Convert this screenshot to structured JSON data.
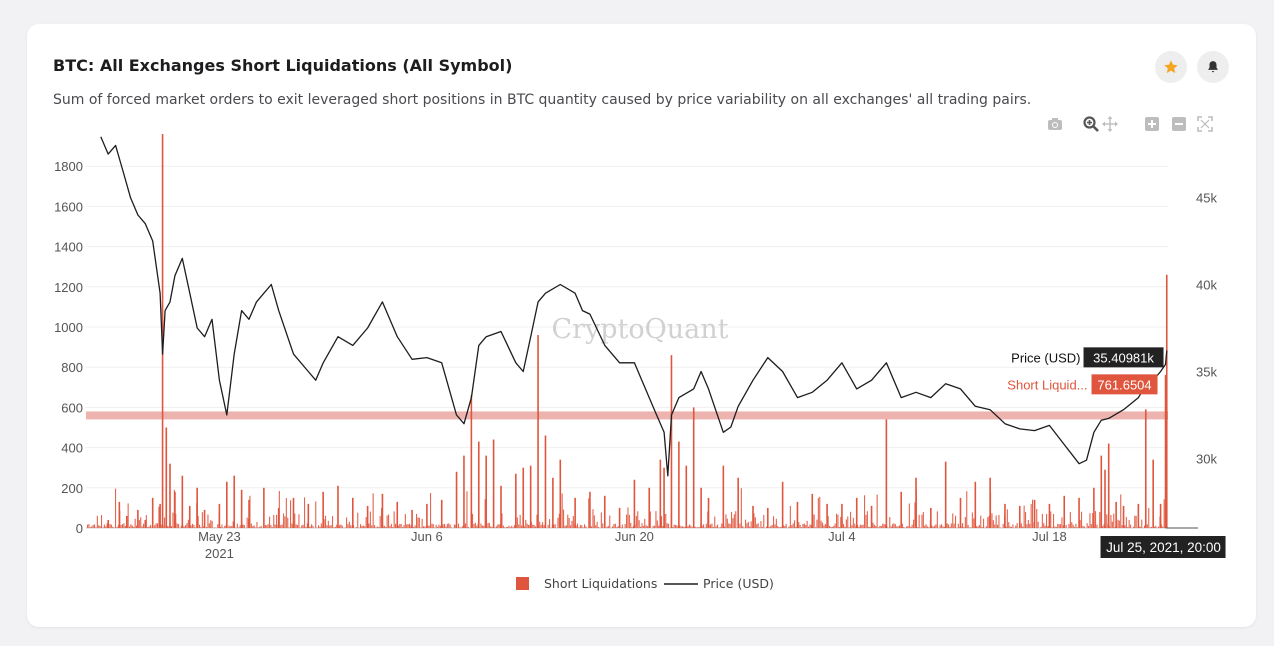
{
  "header": {
    "title": "BTC: All Exchanges Short Liquidations (All Symbol)",
    "subtitle": "Sum of forced market orders to exit leveraged short positions in BTC quantity caused by price variability on all exchanges' all trading pairs."
  },
  "toolbar": {
    "icons": [
      "camera-icon",
      "zoom-icon",
      "pan-icon",
      "zoom-in-icon",
      "zoom-out-icon",
      "autoscale-icon"
    ]
  },
  "watermark": "CryptoQuant",
  "tooltip": {
    "price_label": "Price (USD)",
    "price_value": "35.40981k",
    "liq_label": "Short Liquid...",
    "liq_value": "761.6504",
    "date": "Jul 25, 2021, 20:00"
  },
  "colors": {
    "liquidation": "#e0553d",
    "price": "#1d1d1f",
    "star": "#f5a623",
    "highlight_band": "#e79a93"
  },
  "chart_data": {
    "type": "bar",
    "x_range": [
      "2021-05-14",
      "2021-07-26"
    ],
    "x_ticks": [
      {
        "date": "2021-05-23",
        "label": "May 23",
        "sub": "2021"
      },
      {
        "date": "2021-06-06",
        "label": "Jun 6",
        "sub": ""
      },
      {
        "date": "2021-06-20",
        "label": "Jun 20",
        "sub": ""
      },
      {
        "date": "2021-07-04",
        "label": "Jul 4",
        "sub": ""
      },
      {
        "date": "2021-07-18",
        "label": "Jul 18",
        "sub": ""
      }
    ],
    "y_left": {
      "range": [
        0,
        1990
      ],
      "ticks": [
        0,
        200,
        400,
        600,
        800,
        1000,
        1200,
        1400,
        1600,
        1800
      ]
    },
    "y_right": {
      "range": [
        26000,
        49000
      ],
      "ticks": [
        30000,
        35000,
        40000,
        45000
      ],
      "tick_labels": [
        "30k",
        "35k",
        "40k",
        "45k"
      ]
    },
    "highlight_band_value": 560,
    "legend": {
      "placement": "bottom-center",
      "items": [
        "Short Liquidations",
        "Price (USD)"
      ]
    },
    "series": [
      {
        "name": "Short Liquidations",
        "kind": "bar",
        "axis": "left",
        "points": [
          [
            "2021-05-15 12:00",
            40
          ],
          [
            "2021-05-16 06:00",
            130
          ],
          [
            "2021-05-16 18:00",
            60
          ],
          [
            "2021-05-17 12:00",
            90
          ],
          [
            "2021-05-18 00:00",
            40
          ],
          [
            "2021-05-18 12:00",
            150
          ],
          [
            "2021-05-19 00:00",
            120
          ],
          [
            "2021-05-19 04:00",
            1960
          ],
          [
            "2021-05-19 10:00",
            500
          ],
          [
            "2021-05-19 16:00",
            320
          ],
          [
            "2021-05-20 00:00",
            180
          ],
          [
            "2021-05-20 12:00",
            260
          ],
          [
            "2021-05-21 00:00",
            110
          ],
          [
            "2021-05-21 12:00",
            200
          ],
          [
            "2021-05-22 00:00",
            90
          ],
          [
            "2021-05-23 00:00",
            120
          ],
          [
            "2021-05-23 12:00",
            230
          ],
          [
            "2021-05-24 00:00",
            260
          ],
          [
            "2021-05-24 12:00",
            190
          ],
          [
            "2021-05-25 00:00",
            140
          ],
          [
            "2021-05-26 00:00",
            200
          ],
          [
            "2021-05-27 00:00",
            100
          ],
          [
            "2021-05-28 00:00",
            150
          ],
          [
            "2021-05-29 00:00",
            120
          ],
          [
            "2021-05-30 00:00",
            180
          ],
          [
            "2021-05-31 00:00",
            210
          ],
          [
            "2021-06-01 00:00",
            150
          ],
          [
            "2021-06-02 00:00",
            110
          ],
          [
            "2021-06-03 00:00",
            170
          ],
          [
            "2021-06-04 00:00",
            130
          ],
          [
            "2021-06-05 00:00",
            90
          ],
          [
            "2021-06-06 00:00",
            120
          ],
          [
            "2021-06-07 00:00",
            140
          ],
          [
            "2021-06-08 00:00",
            280
          ],
          [
            "2021-06-08 12:00",
            360
          ],
          [
            "2021-06-09 00:00",
            660
          ],
          [
            "2021-06-09 12:00",
            430
          ],
          [
            "2021-06-10 00:00",
            360
          ],
          [
            "2021-06-10 12:00",
            440
          ],
          [
            "2021-06-11 00:00",
            210
          ],
          [
            "2021-06-12 00:00",
            270
          ],
          [
            "2021-06-12 12:00",
            300
          ],
          [
            "2021-06-13 00:00",
            310
          ],
          [
            "2021-06-13 12:00",
            960
          ],
          [
            "2021-06-14 00:00",
            460
          ],
          [
            "2021-06-14 12:00",
            250
          ],
          [
            "2021-06-15 00:00",
            340
          ],
          [
            "2021-06-16 00:00",
            150
          ],
          [
            "2021-06-17 00:00",
            180
          ],
          [
            "2021-06-18 00:00",
            160
          ],
          [
            "2021-06-19 00:00",
            100
          ],
          [
            "2021-06-20 00:00",
            240
          ],
          [
            "2021-06-21 00:00",
            200
          ],
          [
            "2021-06-21 18:00",
            340
          ],
          [
            "2021-06-22 00:00",
            300
          ],
          [
            "2021-06-22 12:00",
            860
          ],
          [
            "2021-06-23 00:00",
            430
          ],
          [
            "2021-06-23 12:00",
            310
          ],
          [
            "2021-06-24 00:00",
            600
          ],
          [
            "2021-06-24 12:00",
            200
          ],
          [
            "2021-06-25 00:00",
            150
          ],
          [
            "2021-06-26 00:00",
            310
          ],
          [
            "2021-06-27 00:00",
            250
          ],
          [
            "2021-06-28 00:00",
            110
          ],
          [
            "2021-06-29 00:00",
            100
          ],
          [
            "2021-06-30 00:00",
            230
          ],
          [
            "2021-07-01 00:00",
            130
          ],
          [
            "2021-07-02 00:00",
            170
          ],
          [
            "2021-07-03 00:00",
            120
          ],
          [
            "2021-07-04 00:00",
            120
          ],
          [
            "2021-07-05 00:00",
            150
          ],
          [
            "2021-07-06 00:00",
            110
          ],
          [
            "2021-07-07 00:00",
            540
          ],
          [
            "2021-07-08 00:00",
            180
          ],
          [
            "2021-07-09 00:00",
            250
          ],
          [
            "2021-07-10 00:00",
            100
          ],
          [
            "2021-07-11 00:00",
            330
          ],
          [
            "2021-07-12 00:00",
            150
          ],
          [
            "2021-07-13 00:00",
            230
          ],
          [
            "2021-07-14 00:00",
            250
          ],
          [
            "2021-07-15 00:00",
            120
          ],
          [
            "2021-07-16 00:00",
            110
          ],
          [
            "2021-07-17 00:00",
            140
          ],
          [
            "2021-07-18 00:00",
            120
          ],
          [
            "2021-07-19 00:00",
            160
          ],
          [
            "2021-07-20 00:00",
            150
          ],
          [
            "2021-07-21 00:00",
            200
          ],
          [
            "2021-07-21 12:00",
            360
          ],
          [
            "2021-07-21 18:00",
            290
          ],
          [
            "2021-07-22 00:00",
            420
          ],
          [
            "2021-07-22 12:00",
            130
          ],
          [
            "2021-07-23 00:00",
            110
          ],
          [
            "2021-07-24 00:00",
            120
          ],
          [
            "2021-07-24 12:00",
            590
          ],
          [
            "2021-07-25 00:00",
            340
          ],
          [
            "2021-07-25 12:00",
            120
          ],
          [
            "2021-07-25 20:00",
            761.6504
          ],
          [
            "2021-07-25 22:00",
            1260
          ]
        ]
      },
      {
        "name": "Price (USD)",
        "kind": "line",
        "axis": "right",
        "points": [
          [
            "2021-05-15 00:00",
            48500
          ],
          [
            "2021-05-15 12:00",
            47500
          ],
          [
            "2021-05-16 00:00",
            48000
          ],
          [
            "2021-05-16 12:00",
            46500
          ],
          [
            "2021-05-17 00:00",
            45000
          ],
          [
            "2021-05-17 12:00",
            44000
          ],
          [
            "2021-05-18 00:00",
            43500
          ],
          [
            "2021-05-18 12:00",
            42500
          ],
          [
            "2021-05-19 00:00",
            39500
          ],
          [
            "2021-05-19 04:00",
            36000
          ],
          [
            "2021-05-19 08:00",
            38500
          ],
          [
            "2021-05-19 16:00",
            39000
          ],
          [
            "2021-05-20 00:00",
            40500
          ],
          [
            "2021-05-20 12:00",
            41500
          ],
          [
            "2021-05-21 00:00",
            39500
          ],
          [
            "2021-05-21 12:00",
            37500
          ],
          [
            "2021-05-22 00:00",
            37000
          ],
          [
            "2021-05-22 12:00",
            38000
          ],
          [
            "2021-05-23 00:00",
            34500
          ],
          [
            "2021-05-23 12:00",
            32500
          ],
          [
            "2021-05-24 00:00",
            36000
          ],
          [
            "2021-05-24 12:00",
            38500
          ],
          [
            "2021-05-25 00:00",
            38000
          ],
          [
            "2021-05-25 12:00",
            39000
          ],
          [
            "2021-05-26 00:00",
            39500
          ],
          [
            "2021-05-26 12:00",
            40000
          ],
          [
            "2021-05-27 00:00",
            38500
          ],
          [
            "2021-05-28 00:00",
            36000
          ],
          [
            "2021-05-29 00:00",
            35000
          ],
          [
            "2021-05-29 12:00",
            34500
          ],
          [
            "2021-05-30 00:00",
            35500
          ],
          [
            "2021-05-31 00:00",
            37000
          ],
          [
            "2021-06-01 00:00",
            36500
          ],
          [
            "2021-06-02 00:00",
            37500
          ],
          [
            "2021-06-03 00:00",
            39000
          ],
          [
            "2021-06-04 00:00",
            37000
          ],
          [
            "2021-06-05 00:00",
            35700
          ],
          [
            "2021-06-06 00:00",
            35800
          ],
          [
            "2021-06-07 00:00",
            35500
          ],
          [
            "2021-06-07 12:00",
            34000
          ],
          [
            "2021-06-08 00:00",
            32500
          ],
          [
            "2021-06-08 12:00",
            32000
          ],
          [
            "2021-06-09 00:00",
            33500
          ],
          [
            "2021-06-09 12:00",
            36500
          ],
          [
            "2021-06-10 00:00",
            37000
          ],
          [
            "2021-06-11 00:00",
            37300
          ],
          [
            "2021-06-12 00:00",
            35500
          ],
          [
            "2021-06-12 12:00",
            35000
          ],
          [
            "2021-06-13 00:00",
            37000
          ],
          [
            "2021-06-13 12:00",
            39000
          ],
          [
            "2021-06-14 00:00",
            39500
          ],
          [
            "2021-06-15 00:00",
            40000
          ],
          [
            "2021-06-16 00:00",
            39500
          ],
          [
            "2021-06-16 12:00",
            38500
          ],
          [
            "2021-06-17 00:00",
            38300
          ],
          [
            "2021-06-18 00:00",
            36500
          ],
          [
            "2021-06-19 00:00",
            35500
          ],
          [
            "2021-06-20 00:00",
            35500
          ],
          [
            "2021-06-20 12:00",
            34500
          ],
          [
            "2021-06-21 00:00",
            33500
          ],
          [
            "2021-06-21 12:00",
            32500
          ],
          [
            "2021-06-22 00:00",
            31500
          ],
          [
            "2021-06-22 06:00",
            29000
          ],
          [
            "2021-06-22 12:00",
            32500
          ],
          [
            "2021-06-23 00:00",
            33500
          ],
          [
            "2021-06-24 00:00",
            34000
          ],
          [
            "2021-06-24 12:00",
            35000
          ],
          [
            "2021-06-25 00:00",
            34000
          ],
          [
            "2021-06-26 00:00",
            31500
          ],
          [
            "2021-06-26 12:00",
            31800
          ],
          [
            "2021-06-27 00:00",
            33000
          ],
          [
            "2021-06-28 00:00",
            34500
          ],
          [
            "2021-06-29 00:00",
            35800
          ],
          [
            "2021-06-30 00:00",
            35000
          ],
          [
            "2021-07-01 00:00",
            33500
          ],
          [
            "2021-07-02 00:00",
            33800
          ],
          [
            "2021-07-03 00:00",
            34500
          ],
          [
            "2021-07-04 00:00",
            35500
          ],
          [
            "2021-07-05 00:00",
            34000
          ],
          [
            "2021-07-06 00:00",
            34500
          ],
          [
            "2021-07-07 00:00",
            35500
          ],
          [
            "2021-07-08 00:00",
            33500
          ],
          [
            "2021-07-09 00:00",
            33800
          ],
          [
            "2021-07-10 00:00",
            33500
          ],
          [
            "2021-07-11 00:00",
            34300
          ],
          [
            "2021-07-12 00:00",
            34000
          ],
          [
            "2021-07-13 00:00",
            33000
          ],
          [
            "2021-07-14 00:00",
            32800
          ],
          [
            "2021-07-15 00:00",
            32000
          ],
          [
            "2021-07-16 00:00",
            31700
          ],
          [
            "2021-07-17 00:00",
            31600
          ],
          [
            "2021-07-18 00:00",
            31900
          ],
          [
            "2021-07-19 00:00",
            30800
          ],
          [
            "2021-07-20 00:00",
            29700
          ],
          [
            "2021-07-20 12:00",
            29900
          ],
          [
            "2021-07-21 00:00",
            31500
          ],
          [
            "2021-07-21 12:00",
            32200
          ],
          [
            "2021-07-22 00:00",
            32300
          ],
          [
            "2021-07-23 00:00",
            32800
          ],
          [
            "2021-07-24 00:00",
            33500
          ],
          [
            "2021-07-24 12:00",
            34200
          ],
          [
            "2021-07-25 00:00",
            34500
          ],
          [
            "2021-07-25 12:00",
            35000
          ],
          [
            "2021-07-25 20:00",
            35409.81
          ],
          [
            "2021-07-25 22:00",
            36200
          ]
        ]
      }
    ]
  }
}
